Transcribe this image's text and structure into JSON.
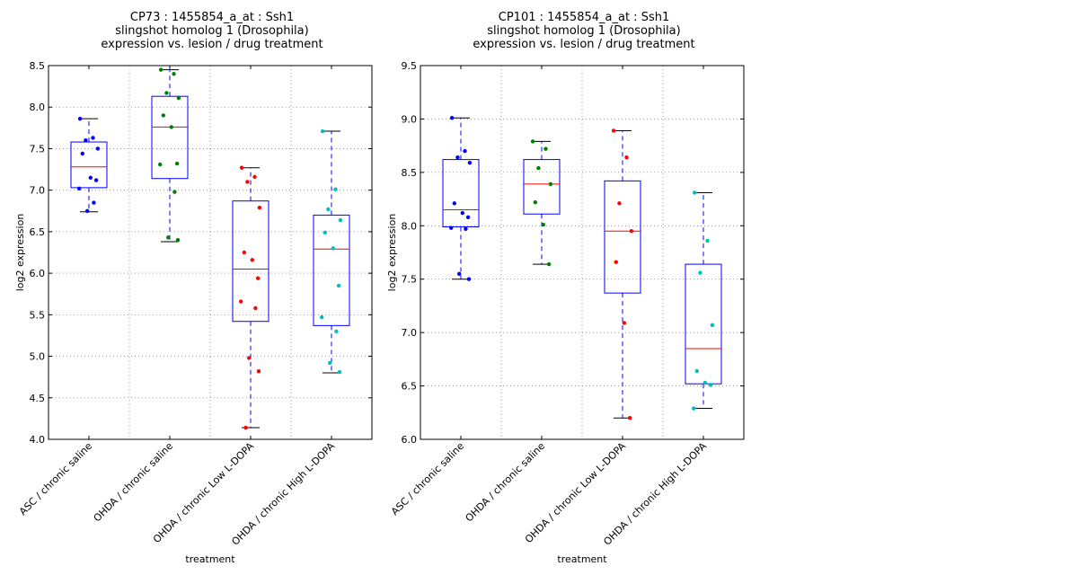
{
  "chart_data": [
    {
      "type": "box",
      "title_lines": [
        "CP73 : 1455854_a_at : Ssh1",
        "slingshot homolog 1 (Drosophila)",
        "expression vs. lesion / drug treatment"
      ],
      "xlabel": "treatment",
      "ylabel": "log2 expression",
      "ylim": [
        4.0,
        8.5
      ],
      "yticks": [
        "4.0",
        "4.5",
        "5.0",
        "5.5",
        "6.0",
        "6.5",
        "7.0",
        "7.5",
        "8.0",
        "8.5"
      ],
      "grid": true,
      "categories": [
        "ASC / chronic saline",
        "OHDA / chronic saline",
        "OHDA / chronic Low L-DOPA",
        "OHDA / chronic High L-DOPA"
      ],
      "colors": [
        "#0000ff",
        "#008000",
        "#ff0000",
        "#00bfbf"
      ],
      "boxes": [
        {
          "whislo": 6.74,
          "q1": 7.03,
          "med": 7.28,
          "q3": 7.58,
          "whishi": 7.86
        },
        {
          "whislo": 6.38,
          "q1": 7.14,
          "med": 7.76,
          "q3": 8.13,
          "whishi": 8.45
        },
        {
          "whislo": 4.14,
          "q1": 5.42,
          "med": 6.05,
          "q3": 6.87,
          "whishi": 7.27
        },
        {
          "whislo": 4.8,
          "q1": 5.37,
          "med": 6.29,
          "q3": 6.7,
          "whishi": 7.71
        }
      ],
      "points": [
        [
          7.86,
          7.63,
          7.6,
          7.5,
          7.44,
          7.15,
          7.12,
          7.02,
          6.85,
          6.75
        ],
        [
          8.45,
          8.4,
          8.17,
          8.11,
          7.9,
          7.76,
          7.32,
          7.31,
          6.98,
          6.43,
          6.4
        ],
        [
          7.27,
          7.16,
          7.1,
          6.79,
          6.25,
          6.16,
          5.94,
          5.66,
          5.58,
          4.98,
          4.82,
          4.14
        ],
        [
          7.71,
          7.01,
          6.77,
          6.64,
          6.49,
          6.3,
          5.85,
          5.47,
          5.3,
          4.92,
          4.81
        ]
      ]
    },
    {
      "type": "box",
      "title_lines": [
        "CP101 : 1455854_a_at : Ssh1",
        "slingshot homolog 1 (Drosophila)",
        "expression vs. lesion / drug treatment"
      ],
      "xlabel": "treatment",
      "ylabel": "log2 expression",
      "ylim": [
        6.0,
        9.5
      ],
      "yticks": [
        "6.0",
        "6.5",
        "7.0",
        "7.5",
        "8.0",
        "8.5",
        "9.0",
        "9.5"
      ],
      "grid": true,
      "categories": [
        "ASC / chronic saline",
        "OHDA / chronic saline",
        "OHDA / chronic Low L-DOPA",
        "OHDA / chronic High L-DOPA"
      ],
      "colors": [
        "#0000ff",
        "#008000",
        "#ff0000",
        "#00bfbf"
      ],
      "boxes": [
        {
          "whislo": 7.5,
          "q1": 7.99,
          "med": 8.15,
          "q3": 8.62,
          "whishi": 9.01
        },
        {
          "whislo": 7.64,
          "q1": 8.11,
          "med": 8.39,
          "q3": 8.62,
          "whishi": 8.79
        },
        {
          "whislo": 6.2,
          "q1": 7.37,
          "med": 7.95,
          "q3": 8.42,
          "whishi": 8.89
        },
        {
          "whislo": 6.29,
          "q1": 6.52,
          "med": 6.85,
          "q3": 7.64,
          "whishi": 8.31
        }
      ],
      "points": [
        [
          9.01,
          8.7,
          8.64,
          8.59,
          8.21,
          8.12,
          8.08,
          7.98,
          7.97,
          7.55,
          7.5
        ],
        [
          8.79,
          8.72,
          8.54,
          8.39,
          8.22,
          8.01,
          7.64
        ],
        [
          8.89,
          8.64,
          8.21,
          7.95,
          7.66,
          7.09,
          6.2
        ],
        [
          8.31,
          7.86,
          7.56,
          7.07,
          6.64,
          6.53,
          6.51,
          6.29
        ]
      ]
    }
  ]
}
